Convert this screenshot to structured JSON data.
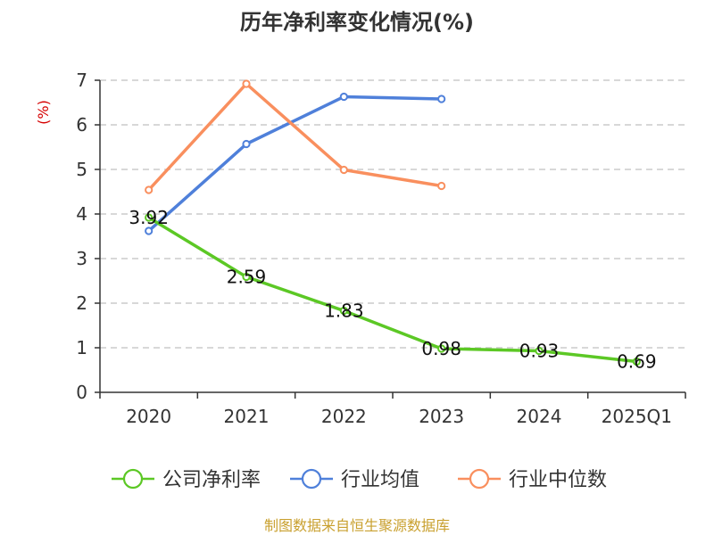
{
  "chart_data": {
    "type": "line",
    "title": "历年净利率变化情况(%)",
    "ylabel": "(%)",
    "xlabel": "",
    "categories": [
      "2020",
      "2021",
      "2022",
      "2023",
      "2024",
      "2025Q1"
    ],
    "ylim": [
      0,
      7
    ],
    "yticks": [
      0,
      1,
      2,
      3,
      4,
      5,
      6,
      7
    ],
    "grid": true,
    "legend_position": "bottom",
    "series": [
      {
        "name": "公司净利率",
        "color": "#5cc825",
        "values": [
          3.92,
          2.59,
          1.83,
          0.98,
          0.93,
          0.69
        ],
        "labels": [
          "3.92",
          "2.59",
          "1.83",
          "0.98",
          "0.93",
          "0.69"
        ]
      },
      {
        "name": "行业均值",
        "color": "#4f80da",
        "values": [
          3.62,
          5.57,
          6.63,
          6.58,
          null,
          null
        ]
      },
      {
        "name": "行业中位数",
        "color": "#f98f5e",
        "values": [
          4.54,
          6.92,
          4.99,
          4.63,
          null,
          null
        ]
      }
    ],
    "source": "制图数据来自恒生聚源数据库"
  },
  "colors": {
    "title": "#333333",
    "unit": "#d50000",
    "source": "#c9a02f",
    "axis": "#333333",
    "grid": "#cccccc"
  }
}
